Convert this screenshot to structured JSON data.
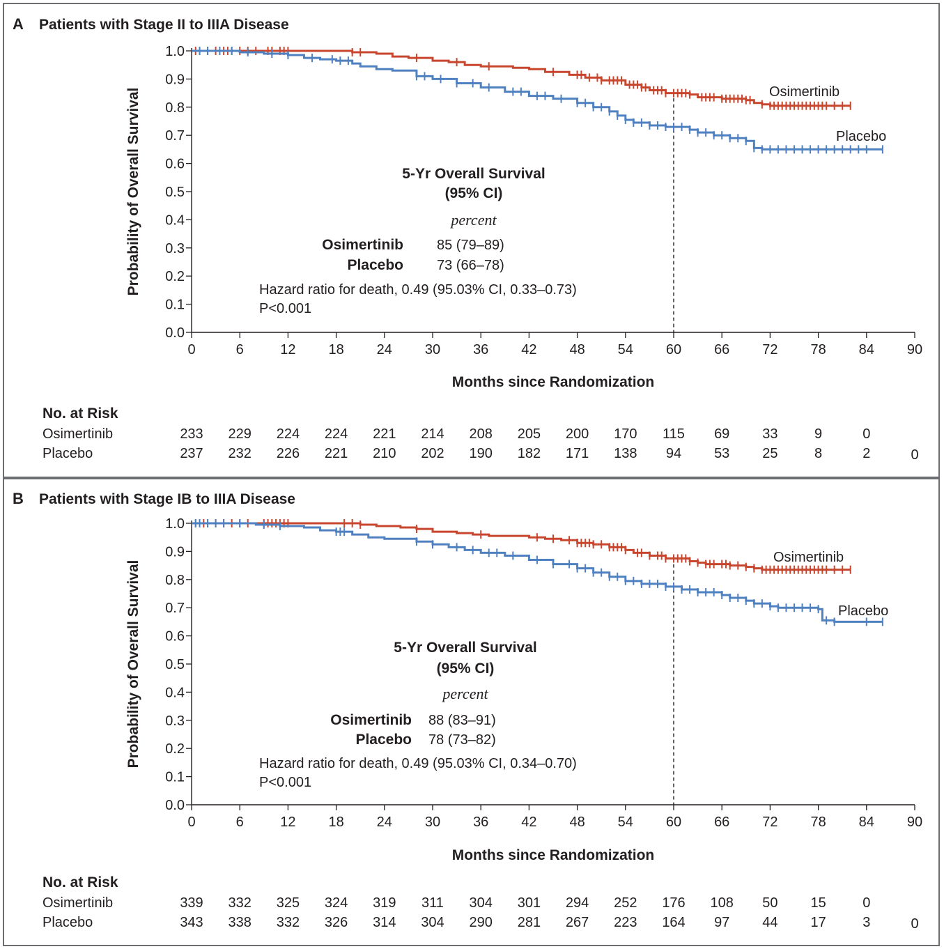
{
  "colors": {
    "osimertinib": "#c8462e",
    "placebo": "#4f80c0",
    "axis": "#231f20",
    "frame": "#6d6e71"
  },
  "panels": [
    {
      "letter": "A",
      "title": "Patients with Stage II to IIIA Disease",
      "summary": {
        "heading1": "5-Yr Overall Survival",
        "heading2": "(95% CI)",
        "unit": "percent",
        "rows": [
          {
            "label": "Osimertinib",
            "value": "85 (79–89)"
          },
          {
            "label": "Placebo",
            "value": "73 (66–78)"
          }
        ],
        "hr": "Hazard ratio for death, 0.49 (95.03% CI, 0.33–0.73)",
        "p": "P<0.001"
      },
      "risk": {
        "title": "No. at Risk",
        "rows": [
          {
            "label": "Osimertinib",
            "values": [
              "233",
              "229",
              "224",
              "224",
              "221",
              "214",
              "208",
              "205",
              "200",
              "170",
              "115",
              "69",
              "33",
              "9",
              "0"
            ]
          },
          {
            "label": "Placebo",
            "values": [
              "237",
              "232",
              "226",
              "221",
              "210",
              "202",
              "190",
              "182",
              "171",
              "138",
              "94",
              "53",
              "25",
              "8",
              "2",
              "0"
            ]
          }
        ]
      },
      "chart_data": {
        "type": "line",
        "title": "Patients with Stage II to IIIA Disease",
        "xlabel": "Months since Randomization",
        "ylabel": "Probability of Overall Survival",
        "xlim": [
          0,
          90
        ],
        "ylim": [
          0,
          1
        ],
        "xticks": [
          0,
          6,
          12,
          18,
          24,
          30,
          36,
          42,
          48,
          54,
          60,
          66,
          72,
          78,
          84,
          90
        ],
        "yticks": [
          "0.0",
          "0.1",
          "0.2",
          "0.3",
          "0.4",
          "0.5",
          "0.6",
          "0.7",
          "0.8",
          "0.9",
          "1.0"
        ],
        "reference_x": 60,
        "series": [
          {
            "name": "Osimertinib",
            "label": "Osimertinib",
            "steps": [
              [
                0,
                1.0
              ],
              [
                20,
                0.995
              ],
              [
                23,
                0.99
              ],
              [
                25,
                0.98
              ],
              [
                27,
                0.975
              ],
              [
                30,
                0.965
              ],
              [
                32,
                0.96
              ],
              [
                34,
                0.95
              ],
              [
                36,
                0.945
              ],
              [
                40,
                0.94
              ],
              [
                42,
                0.935
              ],
              [
                44,
                0.925
              ],
              [
                47,
                0.915
              ],
              [
                49,
                0.905
              ],
              [
                51,
                0.895
              ],
              [
                54,
                0.88
              ],
              [
                56,
                0.87
              ],
              [
                57,
                0.86
              ],
              [
                59,
                0.85
              ],
              [
                62,
                0.845
              ],
              [
                63,
                0.835
              ],
              [
                66,
                0.83
              ],
              [
                69,
                0.825
              ],
              [
                70,
                0.815
              ],
              [
                71,
                0.81
              ],
              [
                72,
                0.805
              ],
              [
                82,
                0.805
              ]
            ],
            "censors": [
              0.5,
              1,
              2,
              3,
              4,
              4.5,
              5,
              6,
              7,
              8,
              9.5,
              10,
              11,
              11.5,
              12,
              20,
              21,
              28,
              33,
              37,
              45,
              48,
              48.5,
              49.5,
              50.5,
              51,
              52,
              52.5,
              53,
              53.5,
              54.5,
              55,
              55.5,
              56,
              56.5,
              57.5,
              58,
              58.5,
              59,
              60,
              60.5,
              61,
              61.5,
              62,
              63.5,
              64,
              64.5,
              65,
              66,
              66.5,
              67,
              67.5,
              68,
              68.5,
              69,
              69.5,
              71,
              72,
              72.5,
              73,
              73.5,
              74,
              74.5,
              75,
              75.5,
              76,
              76.5,
              77,
              77.5,
              78,
              78.5,
              79,
              80,
              81,
              82
            ]
          },
          {
            "name": "Placebo",
            "label": "Placebo",
            "steps": [
              [
                0,
                1.0
              ],
              [
                6,
                0.995
              ],
              [
                9,
                0.99
              ],
              [
                12,
                0.985
              ],
              [
                14,
                0.975
              ],
              [
                16,
                0.97
              ],
              [
                18,
                0.965
              ],
              [
                20,
                0.955
              ],
              [
                21,
                0.945
              ],
              [
                23,
                0.935
              ],
              [
                25,
                0.93
              ],
              [
                28,
                0.91
              ],
              [
                30,
                0.9
              ],
              [
                33,
                0.885
              ],
              [
                36,
                0.87
              ],
              [
                39,
                0.855
              ],
              [
                42,
                0.84
              ],
              [
                45,
                0.83
              ],
              [
                48,
                0.815
              ],
              [
                50,
                0.8
              ],
              [
                52,
                0.785
              ],
              [
                53,
                0.77
              ],
              [
                54,
                0.755
              ],
              [
                55,
                0.745
              ],
              [
                57,
                0.735
              ],
              [
                59,
                0.73
              ],
              [
                62,
                0.72
              ],
              [
                63,
                0.71
              ],
              [
                65,
                0.7
              ],
              [
                67,
                0.69
              ],
              [
                69,
                0.68
              ],
              [
                70,
                0.655
              ],
              [
                71,
                0.65
              ],
              [
                86,
                0.65
              ]
            ],
            "censors": [
              1,
              2,
              3.5,
              5,
              7,
              10,
              12,
              15,
              17.5,
              18.5,
              19.5,
              28,
              29,
              31,
              33,
              35,
              37,
              40,
              41,
              43,
              44,
              46,
              48,
              49,
              50,
              51,
              52,
              53,
              54,
              55,
              56,
              57,
              58,
              59,
              60,
              61,
              62,
              63,
              64,
              65,
              66,
              67,
              68,
              69,
              70,
              71,
              72,
              73,
              74,
              75,
              76,
              77,
              78,
              79,
              80,
              81,
              82,
              83,
              84,
              86
            ]
          }
        ]
      }
    },
    {
      "letter": "B",
      "title": "Patients with Stage IB to IIIA Disease",
      "summary": {
        "heading1": "5-Yr Overall Survival",
        "heading2": "(95% CI)",
        "unit": "percent",
        "rows": [
          {
            "label": "Osimertinib",
            "value": "88 (83–91)"
          },
          {
            "label": "Placebo",
            "value": "78 (73–82)"
          }
        ],
        "hr": "Hazard ratio for death, 0.49 (95.03% CI, 0.34–0.70)",
        "p": "P<0.001"
      },
      "risk": {
        "title": "No. at Risk",
        "rows": [
          {
            "label": "Osimertinib",
            "values": [
              "339",
              "332",
              "325",
              "324",
              "319",
              "311",
              "304",
              "301",
              "294",
              "252",
              "176",
              "108",
              "50",
              "15",
              "0"
            ]
          },
          {
            "label": "Placebo",
            "values": [
              "343",
              "338",
              "332",
              "326",
              "314",
              "304",
              "290",
              "281",
              "267",
              "223",
              "164",
              "97",
              "44",
              "17",
              "3",
              "0"
            ]
          }
        ]
      },
      "chart_data": {
        "type": "line",
        "title": "Patients with Stage IB to IIIA Disease",
        "xlabel": "Months since Randomization",
        "ylabel": "Probability of Overall Survival",
        "xlim": [
          0,
          90
        ],
        "ylim": [
          0,
          1
        ],
        "xticks": [
          0,
          6,
          12,
          18,
          24,
          30,
          36,
          42,
          48,
          54,
          60,
          66,
          72,
          78,
          84,
          90
        ],
        "yticks": [
          "0.0",
          "0.1",
          "0.2",
          "0.3",
          "0.4",
          "0.5",
          "0.6",
          "0.7",
          "0.8",
          "0.9",
          "1.0"
        ],
        "reference_x": 60,
        "series": [
          {
            "name": "Osimertinib",
            "label": "Osimertinib",
            "steps": [
              [
                0,
                1.0
              ],
              [
                21,
                0.995
              ],
              [
                23,
                0.99
              ],
              [
                26,
                0.985
              ],
              [
                28,
                0.98
              ],
              [
                30,
                0.97
              ],
              [
                33,
                0.965
              ],
              [
                35,
                0.96
              ],
              [
                37,
                0.955
              ],
              [
                42,
                0.95
              ],
              [
                44,
                0.945
              ],
              [
                46,
                0.94
              ],
              [
                48,
                0.93
              ],
              [
                50,
                0.925
              ],
              [
                52,
                0.915
              ],
              [
                54,
                0.905
              ],
              [
                55,
                0.895
              ],
              [
                57,
                0.885
              ],
              [
                59,
                0.875
              ],
              [
                62,
                0.865
              ],
              [
                63,
                0.86
              ],
              [
                64,
                0.855
              ],
              [
                67,
                0.85
              ],
              [
                69,
                0.845
              ],
              [
                70,
                0.84
              ],
              [
                71,
                0.835
              ],
              [
                82,
                0.835
              ]
            ],
            "censors": [
              0.5,
              1,
              1.5,
              2,
              3,
              4,
              5,
              6,
              7,
              9,
              9.5,
              10,
              10.5,
              11,
              11.5,
              12,
              19,
              20,
              21,
              28,
              36,
              43,
              45,
              47,
              48,
              48.5,
              49,
              49.5,
              50,
              51,
              52,
              52.5,
              53,
              53.5,
              54,
              55.5,
              56,
              57,
              58,
              58.5,
              59,
              60,
              60.5,
              61,
              61.5,
              62,
              63,
              64,
              64.5,
              65,
              66,
              66.5,
              67,
              68,
              69,
              70,
              71,
              71.5,
              72,
              72.5,
              73,
              73.5,
              74,
              74.5,
              75,
              75.5,
              76,
              76.5,
              77,
              77.5,
              78,
              78.5,
              79,
              80,
              81,
              82
            ]
          },
          {
            "name": "Placebo",
            "label": "Placebo",
            "steps": [
              [
                0,
                1.0
              ],
              [
                8,
                0.995
              ],
              [
                11,
                0.99
              ],
              [
                14,
                0.985
              ],
              [
                16,
                0.975
              ],
              [
                18,
                0.97
              ],
              [
                20,
                0.96
              ],
              [
                22,
                0.95
              ],
              [
                24,
                0.945
              ],
              [
                28,
                0.935
              ],
              [
                30,
                0.925
              ],
              [
                32,
                0.915
              ],
              [
                34,
                0.905
              ],
              [
                36,
                0.895
              ],
              [
                39,
                0.885
              ],
              [
                42,
                0.87
              ],
              [
                45,
                0.855
              ],
              [
                48,
                0.84
              ],
              [
                50,
                0.825
              ],
              [
                52,
                0.81
              ],
              [
                54,
                0.795
              ],
              [
                56,
                0.785
              ],
              [
                59,
                0.775
              ],
              [
                61,
                0.765
              ],
              [
                63,
                0.755
              ],
              [
                66,
                0.745
              ],
              [
                67,
                0.735
              ],
              [
                69,
                0.725
              ],
              [
                70,
                0.715
              ],
              [
                72,
                0.705
              ],
              [
                73,
                0.7
              ],
              [
                78,
                0.695
              ],
              [
                78.5,
                0.655
              ],
              [
                80,
                0.65
              ],
              [
                86,
                0.65
              ]
            ],
            "censors": [
              0.5,
              1,
              2,
              3,
              4,
              6,
              9,
              11,
              18,
              18.5,
              19,
              28,
              30,
              33,
              35,
              37,
              38,
              40,
              43,
              45,
              47,
              48,
              49,
              50,
              51,
              52,
              53,
              54,
              55,
              56,
              57,
              58,
              59,
              60,
              61,
              62,
              63,
              64,
              65,
              66,
              67,
              68,
              69,
              70,
              71,
              72,
              73,
              74,
              75,
              76,
              77,
              78,
              79,
              80,
              84,
              86
            ]
          }
        ]
      }
    }
  ]
}
